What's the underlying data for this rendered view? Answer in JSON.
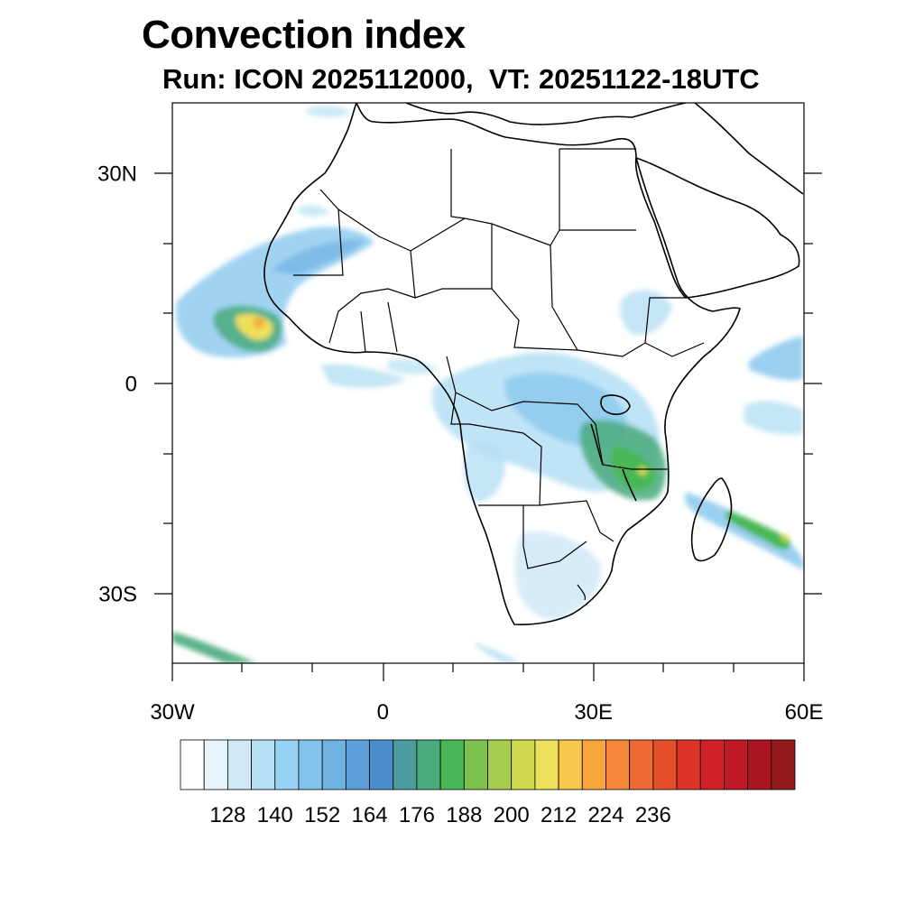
{
  "title": "Convection index",
  "subtitle": "Run: ICON 2025112000,  VT: 20251122-18UTC",
  "map": {
    "lon_range": [
      -30,
      60
    ],
    "lat_range": [
      -40,
      40
    ],
    "lat_tick_labels": [
      {
        "lat": 30,
        "label": "30N"
      },
      {
        "lat": 0,
        "label": "0"
      },
      {
        "lat": -30,
        "label": "30S"
      }
    ],
    "lon_tick_labels": [
      {
        "lon": -30,
        "label": "30W"
      },
      {
        "lon": 0,
        "label": "0"
      },
      {
        "lon": 30,
        "label": "30E"
      },
      {
        "lon": 60,
        "label": "60E"
      }
    ]
  },
  "colorbar": {
    "colors": [
      "#ffffff",
      "#e8f4fb",
      "#cfe9f7",
      "#b4dff4",
      "#97d4f3",
      "#82c4ec",
      "#6fb2e3",
      "#5d9fd8",
      "#4a8fcc",
      "#4b9c9e",
      "#4aab7c",
      "#49b755",
      "#7bc24e",
      "#a8cc4e",
      "#cfd94e",
      "#eee05a",
      "#f8c84e",
      "#f7a63e",
      "#f5863a",
      "#ef6a33",
      "#e5502c",
      "#dc3429",
      "#cf2028",
      "#be1726",
      "#a91522",
      "#951a1c"
    ],
    "labels": [
      "128",
      "140",
      "152",
      "164",
      "176",
      "188",
      "200",
      "212",
      "224",
      "236"
    ]
  }
}
